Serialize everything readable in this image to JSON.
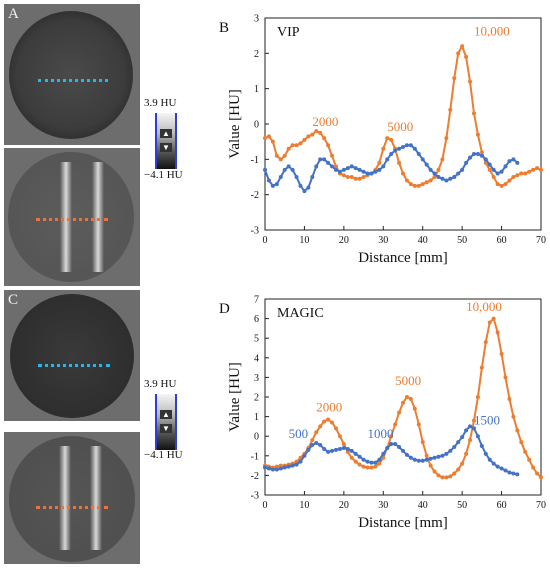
{
  "panels": {
    "a": {
      "letter": "A"
    },
    "b": {
      "letter": "B",
      "title": "VIP"
    },
    "c": {
      "letter": "C"
    },
    "d": {
      "letter": "D",
      "title": "MAGIC"
    }
  },
  "colorbar": {
    "top_label": "3.9 HU",
    "bottom_label": "−4.1 HU"
  },
  "colors": {
    "blue": "#4472c4",
    "orange": "#ed7d31",
    "line_blue": "#22b8ee",
    "line_orange": "#e8743b"
  },
  "chart_data": [
    {
      "type": "line",
      "title": "VIP",
      "xlabel": "Distance [mm]",
      "ylabel": "Value [HU]",
      "xlim": [
        0,
        70
      ],
      "ylim": [
        -3,
        3
      ],
      "xticks": [
        0,
        10,
        20,
        30,
        40,
        50,
        60,
        70
      ],
      "yticks": [
        -3,
        -2,
        -1,
        0,
        1,
        2,
        3
      ],
      "grid": false,
      "annotations": [
        {
          "text": "2000",
          "x": 12,
          "y": -0.05,
          "color": "orange"
        },
        {
          "text": "5000",
          "x": 31,
          "y": -0.2,
          "color": "orange"
        },
        {
          "text": "10,000",
          "x": 53,
          "y": 2.5,
          "color": "orange"
        }
      ],
      "series": [
        {
          "color": "orange",
          "x": [
            0,
            1,
            2,
            3,
            4,
            5,
            6,
            7,
            8,
            9,
            10,
            11,
            12,
            13,
            14,
            15,
            16,
            17,
            18,
            19,
            20,
            21,
            22,
            23,
            24,
            25,
            26,
            27,
            28,
            29,
            30,
            31,
            32,
            33,
            34,
            35,
            36,
            37,
            38,
            39,
            40,
            41,
            42,
            43,
            44,
            45,
            46,
            47,
            48,
            49,
            50,
            51,
            52,
            53,
            54,
            55,
            56,
            57,
            58,
            59,
            60,
            61,
            62,
            63,
            64,
            65,
            66,
            67,
            68,
            69,
            70
          ],
          "y": [
            -0.4,
            -0.35,
            -0.5,
            -0.9,
            -1.0,
            -0.9,
            -0.7,
            -0.6,
            -0.6,
            -0.55,
            -0.45,
            -0.35,
            -0.3,
            -0.2,
            -0.25,
            -0.4,
            -0.6,
            -0.9,
            -1.2,
            -1.4,
            -1.45,
            -1.5,
            -1.5,
            -1.55,
            -1.55,
            -1.5,
            -1.45,
            -1.4,
            -1.3,
            -1.1,
            -0.7,
            -0.4,
            -0.45,
            -0.7,
            -1.1,
            -1.4,
            -1.6,
            -1.7,
            -1.75,
            -1.75,
            -1.7,
            -1.65,
            -1.6,
            -1.5,
            -1.3,
            -1.0,
            -0.4,
            0.4,
            1.3,
            2.0,
            2.2,
            1.9,
            1.2,
            0.3,
            -0.3,
            -0.8,
            -1.1,
            -1.3,
            -1.5,
            -1.7,
            -1.75,
            -1.7,
            -1.6,
            -1.5,
            -1.45,
            -1.4,
            -1.4,
            -1.35,
            -1.3,
            -1.25,
            -1.3
          ]
        },
        {
          "color": "blue",
          "x": [
            0,
            1,
            2,
            3,
            4,
            5,
            6,
            7,
            8,
            9,
            10,
            11,
            12,
            13,
            14,
            15,
            16,
            17,
            18,
            19,
            20,
            21,
            22,
            23,
            24,
            25,
            26,
            27,
            28,
            29,
            30,
            31,
            32,
            33,
            34,
            35,
            36,
            37,
            38,
            39,
            40,
            41,
            42,
            43,
            44,
            45,
            46,
            47,
            48,
            49,
            50,
            51,
            52,
            53,
            54,
            55,
            56,
            57,
            58,
            59,
            60,
            61,
            62,
            63,
            64
          ],
          "y": [
            -1.3,
            -1.6,
            -1.75,
            -1.7,
            -1.5,
            -1.3,
            -1.2,
            -1.3,
            -1.5,
            -1.75,
            -1.9,
            -1.8,
            -1.5,
            -1.2,
            -1.0,
            -1.0,
            -1.1,
            -1.2,
            -1.3,
            -1.35,
            -1.3,
            -1.25,
            -1.2,
            -1.25,
            -1.3,
            -1.35,
            -1.4,
            -1.4,
            -1.35,
            -1.3,
            -1.2,
            -1.0,
            -0.85,
            -0.75,
            -0.7,
            -0.65,
            -0.6,
            -0.6,
            -0.7,
            -0.85,
            -1.0,
            -1.15,
            -1.3,
            -1.4,
            -1.5,
            -1.55,
            -1.6,
            -1.55,
            -1.5,
            -1.4,
            -1.3,
            -1.1,
            -0.95,
            -0.85,
            -0.85,
            -0.9,
            -1.0,
            -1.15,
            -1.3,
            -1.4,
            -1.35,
            -1.2,
            -1.05,
            -1.0,
            -1.1
          ]
        }
      ]
    },
    {
      "type": "line",
      "title": "MAGIC",
      "xlabel": "Distance [mm]",
      "ylabel": "Value [HU]",
      "xlim": [
        0,
        70
      ],
      "ylim": [
        -3,
        7
      ],
      "xticks": [
        0,
        10,
        20,
        30,
        40,
        50,
        60,
        70
      ],
      "yticks": [
        -3,
        -2,
        -1,
        0,
        1,
        2,
        3,
        4,
        5,
        6,
        7
      ],
      "grid": false,
      "annotations": [
        {
          "text": "2000",
          "x": 13,
          "y": 1.25,
          "color": "orange"
        },
        {
          "text": "5000",
          "x": 33,
          "y": 2.6,
          "color": "orange"
        },
        {
          "text": "10,000",
          "x": 51,
          "y": 6.4,
          "color": "orange"
        },
        {
          "text": "500",
          "x": 6,
          "y": -0.1,
          "color": "blue"
        },
        {
          "text": "1000",
          "x": 26,
          "y": -0.1,
          "color": "blue"
        },
        {
          "text": "1500",
          "x": 53,
          "y": 0.6,
          "color": "blue"
        }
      ],
      "series": [
        {
          "color": "orange",
          "x": [
            0,
            1,
            2,
            3,
            4,
            5,
            6,
            7,
            8,
            9,
            10,
            11,
            12,
            13,
            14,
            15,
            16,
            17,
            18,
            19,
            20,
            21,
            22,
            23,
            24,
            25,
            26,
            27,
            28,
            29,
            30,
            31,
            32,
            33,
            34,
            35,
            36,
            37,
            38,
            39,
            40,
            41,
            42,
            43,
            44,
            45,
            46,
            47,
            48,
            49,
            50,
            51,
            52,
            53,
            54,
            55,
            56,
            57,
            58,
            59,
            60,
            61,
            62,
            63,
            64,
            65,
            66,
            67,
            68,
            69,
            70
          ],
          "y": [
            -1.5,
            -1.55,
            -1.6,
            -1.55,
            -1.5,
            -1.5,
            -1.45,
            -1.4,
            -1.3,
            -1.1,
            -0.9,
            -0.6,
            -0.2,
            0.2,
            0.5,
            0.75,
            0.85,
            0.7,
            0.4,
            0.0,
            -0.4,
            -0.8,
            -1.1,
            -1.3,
            -1.45,
            -1.55,
            -1.6,
            -1.6,
            -1.55,
            -1.4,
            -1.1,
            -0.6,
            0.0,
            0.6,
            1.2,
            1.7,
            2.0,
            1.9,
            1.4,
            0.6,
            -0.3,
            -1.0,
            -1.5,
            -1.8,
            -2.0,
            -2.1,
            -2.1,
            -2.05,
            -1.9,
            -1.7,
            -1.4,
            -0.9,
            -0.2,
            0.8,
            2.0,
            3.5,
            4.8,
            5.8,
            6.0,
            5.3,
            4.2,
            3.0,
            1.9,
            1.0,
            0.3,
            -0.3,
            -0.8,
            -1.2,
            -1.6,
            -1.9,
            -2.1
          ]
        },
        {
          "color": "blue",
          "x": [
            0,
            1,
            2,
            3,
            4,
            5,
            6,
            7,
            8,
            9,
            10,
            11,
            12,
            13,
            14,
            15,
            16,
            17,
            18,
            19,
            20,
            21,
            22,
            23,
            24,
            25,
            26,
            27,
            28,
            29,
            30,
            31,
            32,
            33,
            34,
            35,
            36,
            37,
            38,
            39,
            40,
            41,
            42,
            43,
            44,
            45,
            46,
            47,
            48,
            49,
            50,
            51,
            52,
            53,
            54,
            55,
            56,
            57,
            58,
            59,
            60,
            61,
            62,
            63,
            64
          ],
          "y": [
            -1.6,
            -1.65,
            -1.7,
            -1.7,
            -1.65,
            -1.6,
            -1.55,
            -1.5,
            -1.45,
            -1.3,
            -1.0,
            -0.7,
            -0.45,
            -0.35,
            -0.45,
            -0.65,
            -0.8,
            -0.75,
            -0.7,
            -0.65,
            -0.6,
            -0.65,
            -0.75,
            -0.9,
            -1.05,
            -1.2,
            -1.3,
            -1.35,
            -1.35,
            -1.2,
            -0.9,
            -0.6,
            -0.4,
            -0.4,
            -0.55,
            -0.75,
            -0.95,
            -1.1,
            -1.2,
            -1.25,
            -1.25,
            -1.2,
            -1.15,
            -1.1,
            -1.05,
            -1.0,
            -0.9,
            -0.75,
            -0.55,
            -0.3,
            -0.05,
            0.3,
            0.5,
            0.4,
            0.0,
            -0.5,
            -0.9,
            -1.2,
            -1.4,
            -1.55,
            -1.65,
            -1.75,
            -1.85,
            -1.9,
            -1.95
          ]
        }
      ]
    }
  ]
}
